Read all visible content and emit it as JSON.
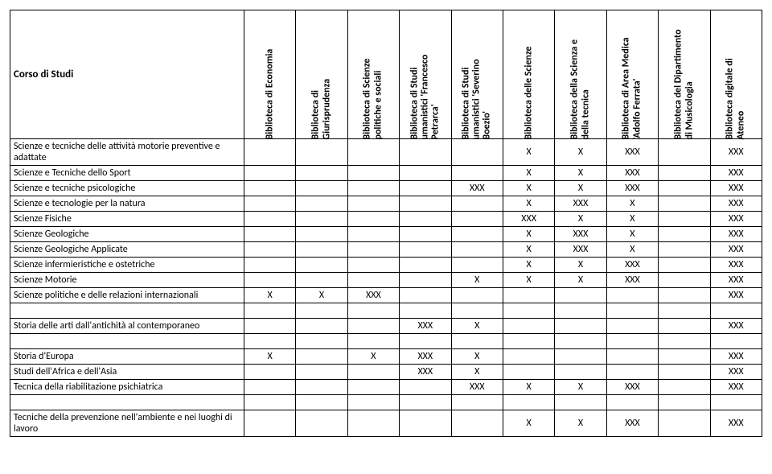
{
  "header": {
    "first": "Corso di Studi",
    "cols": [
      "Biblioteca di Economia",
      "Biblioteca di\nGiurisprudenza",
      "Biblioteca di Scienze\npolitiche e sociali",
      "Biblioteca di Studi\numanistici 'Francesco\nPetrarca'",
      "Biblioteca di Studi\numanistici 'Severino\nBoezio'",
      "Biblioteca delle Scienze",
      "Biblioteca della Scienza e\ndella tecnica",
      "Biblioteca di Area Medica\n'Adolfo Ferrata'",
      "Biblioteca del Dipartimento\ndi Musicologia",
      "Biblioteca digitale di\nAteneo"
    ]
  },
  "groups": [
    {
      "rows": [
        {
          "label": "Scienze e tecniche delle attività motorie preventive e adattate",
          "cells": [
            "",
            "",
            "",
            "",
            "",
            "X",
            "X",
            "XXX",
            "",
            "XXX"
          ]
        },
        {
          "label": "Scienze e Tecniche dello Sport",
          "cells": [
            "",
            "",
            "",
            "",
            "",
            "X",
            "X",
            "XXX",
            "",
            "XXX"
          ]
        },
        {
          "label": "Scienze e tecniche psicologiche",
          "cells": [
            "",
            "",
            "",
            "",
            "XXX",
            "X",
            "X",
            "XXX",
            "",
            "XXX"
          ]
        },
        {
          "label": "Scienze e tecnologie per la natura",
          "cells": [
            "",
            "",
            "",
            "",
            "",
            "X",
            "XXX",
            "X",
            "",
            "XXX"
          ]
        },
        {
          "label": "Scienze Fisiche",
          "cells": [
            "",
            "",
            "",
            "",
            "",
            "XXX",
            "X",
            "X",
            "",
            "XXX"
          ]
        },
        {
          "label": "Scienze Geologiche",
          "cells": [
            "",
            "",
            "",
            "",
            "",
            "X",
            "XXX",
            "X",
            "",
            "XXX"
          ]
        },
        {
          "label": "Scienze Geologiche Applicate",
          "cells": [
            "",
            "",
            "",
            "",
            "",
            "X",
            "XXX",
            "X",
            "",
            "XXX"
          ]
        },
        {
          "label": "Scienze infermieristiche e ostetriche",
          "cells": [
            "",
            "",
            "",
            "",
            "",
            "X",
            "X",
            "XXX",
            "",
            "XXX"
          ]
        },
        {
          "label": "Scienze Motorie",
          "cells": [
            "",
            "",
            "",
            "",
            "X",
            "X",
            "X",
            "XXX",
            "",
            "XXX"
          ]
        },
        {
          "label": "Scienze politiche e delle relazioni internazionali",
          "cells": [
            "X",
            "X",
            "XXX",
            "",
            "",
            "",
            "",
            "",
            "",
            "XXX"
          ]
        }
      ]
    },
    {
      "rows": [
        {
          "label": "Storia delle arti dall'antichità al contemporaneo",
          "cells": [
            "",
            "",
            "",
            "XXX",
            "X",
            "",
            "",
            "",
            "",
            "XXX"
          ]
        }
      ]
    },
    {
      "rows": [
        {
          "label": "Storia d'Europa",
          "cells": [
            "X",
            "",
            "X",
            "XXX",
            "X",
            "",
            "",
            "",
            "",
            "XXX"
          ]
        },
        {
          "label": "Studi dell'Africa e dell'Asia",
          "cells": [
            "",
            "",
            "",
            "XXX",
            "X",
            "",
            "",
            "",
            "",
            "XXX"
          ]
        },
        {
          "label": "Tecnica della riabilitazione psichiatrica",
          "cells": [
            "",
            "",
            "",
            "",
            "XXX",
            "X",
            "X",
            "XXX",
            "",
            "XXX"
          ]
        }
      ]
    },
    {
      "rows": [
        {
          "label": "Tecniche della prevenzione nell'ambiente e nei luoghi di lavoro",
          "cells": [
            "",
            "",
            "",
            "",
            "",
            "X",
            "X",
            "XXX",
            "",
            "XXX"
          ]
        }
      ]
    }
  ]
}
